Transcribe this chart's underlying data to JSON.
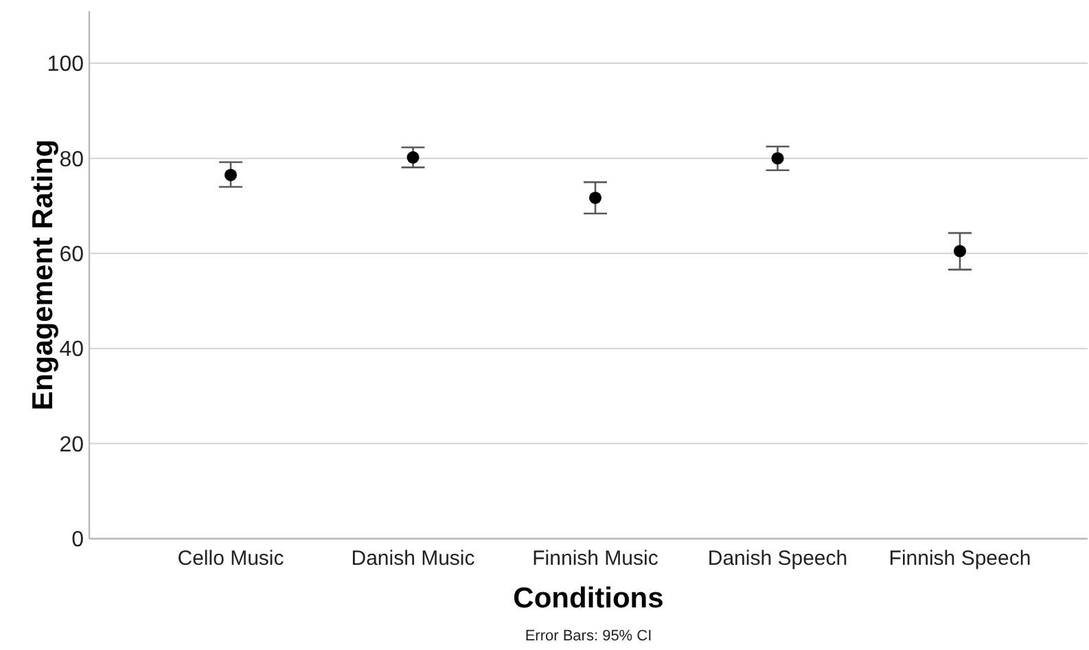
{
  "chart_data": {
    "type": "scatter",
    "categories": [
      "Cello Music",
      "Danish Music",
      "Finnish Music",
      "Danish Speech",
      "Finnish Speech"
    ],
    "values": [
      76.5,
      80.2,
      71.7,
      80.0,
      60.5
    ],
    "errors": [
      [
        74.0,
        79.2
      ],
      [
        78.1,
        82.3
      ],
      [
        68.4,
        75.0
      ],
      [
        77.5,
        82.5
      ],
      [
        56.6,
        64.3
      ]
    ],
    "color": "#000000",
    "marker": "circle",
    "xlabel": "Conditions",
    "ylabel": "Engagement Rating",
    "ylim": [
      0,
      111
    ],
    "yticks": [
      0,
      20,
      40,
      60,
      80,
      100
    ],
    "grid": "y",
    "annotations": [
      "Error Bars: 95% CI"
    ]
  }
}
